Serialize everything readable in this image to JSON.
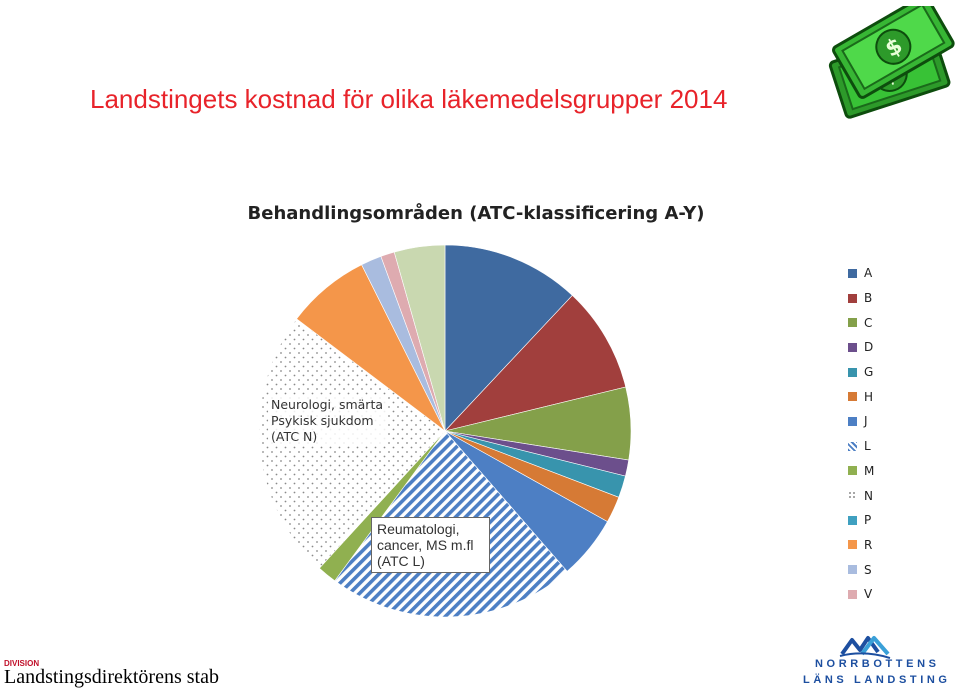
{
  "slide": {
    "title": "Landstingets kostnad för olika läkemedelsgrupper 2014",
    "division_label": "DIVISION",
    "division_name": "Landstingsdirektörens stab",
    "logo_line1": "NORRBOTTENS",
    "logo_line2": "LÄNS LANDSTING"
  },
  "callouts": {
    "n_line1": "Neurologi, smärta",
    "n_line2": "Psykisk sjukdom",
    "n_line3": "(ATC N)",
    "l_line1": "Reumatologi,",
    "l_line2": "cancer, MS m.fl",
    "l_line3": "(ATC L)"
  },
  "chart_data": {
    "type": "pie",
    "title": "Behandlingsområden (ATC-klassificering A-Y)",
    "legend_position": "right",
    "start": "top, clockwise",
    "slices": [
      {
        "label": "A",
        "value": 12.0,
        "color": "#3f6aa0",
        "pattern": "solid"
      },
      {
        "label": "B",
        "value": 9.2,
        "color": "#a13f3d",
        "pattern": "solid"
      },
      {
        "label": "C",
        "value": 6.3,
        "color": "#84a04a",
        "pattern": "solid"
      },
      {
        "label": "D",
        "value": 1.4,
        "color": "#6c4f8c",
        "pattern": "solid"
      },
      {
        "label": "G",
        "value": 1.9,
        "color": "#3894ad",
        "pattern": "solid"
      },
      {
        "label": "H",
        "value": 2.3,
        "color": "#d67a35",
        "pattern": "solid"
      },
      {
        "label": "J",
        "value": 5.5,
        "color": "#4d7fc4",
        "pattern": "solid"
      },
      {
        "label": "L",
        "value": 21.5,
        "color": "#4d7fc4",
        "pattern": "diagonal-stripes"
      },
      {
        "label": "M",
        "value": 1.7,
        "color": "#90b050",
        "pattern": "solid"
      },
      {
        "label": "N",
        "value": 23.5,
        "color": "#8a8a8a",
        "pattern": "dots"
      },
      {
        "label": "P",
        "value": 0.0,
        "color": "#3fa0c0",
        "pattern": "solid"
      },
      {
        "label": "R",
        "value": 7.3,
        "color": "#f4964a",
        "pattern": "solid"
      },
      {
        "label": "S",
        "value": 1.8,
        "color": "#a9bcdf",
        "pattern": "solid"
      },
      {
        "label": "V",
        "value": 1.2,
        "color": "#deabb0",
        "pattern": "solid"
      },
      {
        "label": "",
        "value": 4.4,
        "color": "#c9d8b0",
        "pattern": "solid"
      }
    ]
  }
}
